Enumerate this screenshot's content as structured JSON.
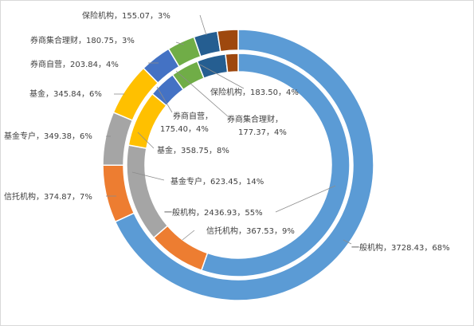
{
  "chart_data": {
    "type": "donut",
    "title": "",
    "series": [
      {
        "ring": "outer",
        "slices": [
          {
            "label": "一般机构",
            "value": 3728.43,
            "pct": "68%",
            "color": "#5b9bd5"
          },
          {
            "label": "信托机构",
            "value": 374.87,
            "pct": "7%",
            "color": "#ed7d31"
          },
          {
            "label": "基金专户",
            "value": 349.38,
            "pct": "6%",
            "color": "#a5a5a5"
          },
          {
            "label": "基金",
            "value": 345.84,
            "pct": "6%",
            "color": "#ffc000"
          },
          {
            "label": "券商自营",
            "value": 203.84,
            "pct": "4%",
            "color": "#4472c4"
          },
          {
            "label": "券商集合理财",
            "value": 180.75,
            "pct": "3%",
            "color": "#70ad47"
          },
          {
            "label": "保险机构",
            "value": 155.07,
            "pct": "3%",
            "color": "#255e91"
          },
          {
            "label": "",
            "value": 135,
            "pct": "",
            "color": "#9e480e"
          }
        ]
      },
      {
        "ring": "inner",
        "slices": [
          {
            "label": "一般机构",
            "value": 2436.93,
            "pct": "55%",
            "color": "#5b9bd5"
          },
          {
            "label": "信托机构",
            "value": 367.53,
            "pct": "9%",
            "color": "#ed7d31"
          },
          {
            "label": "基金专户",
            "value": 623.45,
            "pct": "14%",
            "color": "#a5a5a5"
          },
          {
            "label": "基金",
            "value": 358.75,
            "pct": "8%",
            "color": "#ffc000"
          },
          {
            "label": "券商自营",
            "value": 175.4,
            "pct": "4%",
            "color": "#4472c4"
          },
          {
            "label": "券商集合理财",
            "value": 177.37,
            "pct": "4%",
            "color": "#70ad47"
          },
          {
            "label": "保险机构",
            "value": 183.5,
            "pct": "4%",
            "color": "#255e91"
          },
          {
            "label": "",
            "value": 80,
            "pct": "",
            "color": "#9e480e"
          }
        ]
      }
    ],
    "labels": {
      "outer": [
        {
          "line1": "一般机构，3728.43，68%"
        },
        {
          "line1": "信托机构，374.87，7%"
        },
        {
          "line1": "基金专户，349.38，6%"
        },
        {
          "line1": "基金，345.84，6%"
        },
        {
          "line1": "券商自营，203.84，4%"
        },
        {
          "line1": "券商集合理财，180.75，3%"
        },
        {
          "line1": "保险机构，155.07，3%"
        }
      ],
      "inner": [
        {
          "line1": "一般机构，2436.93，55%"
        },
        {
          "line1": "信托机构，367.53，9%"
        },
        {
          "line1": "基金专户，623.45，14%"
        },
        {
          "line1": "基金，358.75，8%"
        },
        {
          "line1": "券商自营，",
          "line2": "175.40，4%"
        },
        {
          "line1": "券商集合理财，",
          "line2": "177.37，4%"
        },
        {
          "line1": "保险机构，183.50，4%"
        }
      ]
    }
  }
}
